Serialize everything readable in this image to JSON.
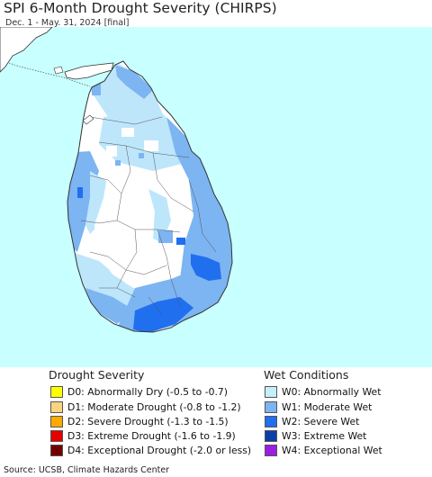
{
  "title": "SPI 6-Month Drought Severity (CHIRPS)",
  "subtitle": "Dec. 1 - May. 31, 2024 [final]",
  "map": {
    "sea_color": "#c8ffff",
    "land_color": "#ffffff",
    "boundary_color": "#333333",
    "wet_w0_color": "#bde6fb",
    "wet_w1_color": "#7db4f2",
    "wet_w2_color": "#1f6fef"
  },
  "legend": {
    "drought_title": "Drought Severity",
    "wet_title": "Wet Conditions",
    "drought_items": [
      {
        "label": "D0: Abnormally Dry (-0.5 to -0.7)",
        "color": "#ffff00"
      },
      {
        "label": "D1: Moderate Drought (-0.8 to -1.2)",
        "color": "#fcd37f"
      },
      {
        "label": "D2: Severe Drought (-1.3 to -1.5)",
        "color": "#ffaa00"
      },
      {
        "label": "D3: Extreme Drought (-1.6 to -1.9)",
        "color": "#e60000"
      },
      {
        "label": "D4: Exceptional Drought (-2.0 or less)",
        "color": "#730000"
      }
    ],
    "wet_items": [
      {
        "label": "W0: Abnormally Wet",
        "color": "#c5f0fb"
      },
      {
        "label": "W1: Moderate Wet",
        "color": "#7db4f2"
      },
      {
        "label": "W2: Severe Wet",
        "color": "#1f6fef"
      },
      {
        "label": "W3: Extreme Wet",
        "color": "#0a3fa8"
      },
      {
        "label": "W4: Exceptional Wet",
        "color": "#9b1fe0"
      }
    ]
  },
  "source": "Source: UCSB, Climate Hazards Center"
}
